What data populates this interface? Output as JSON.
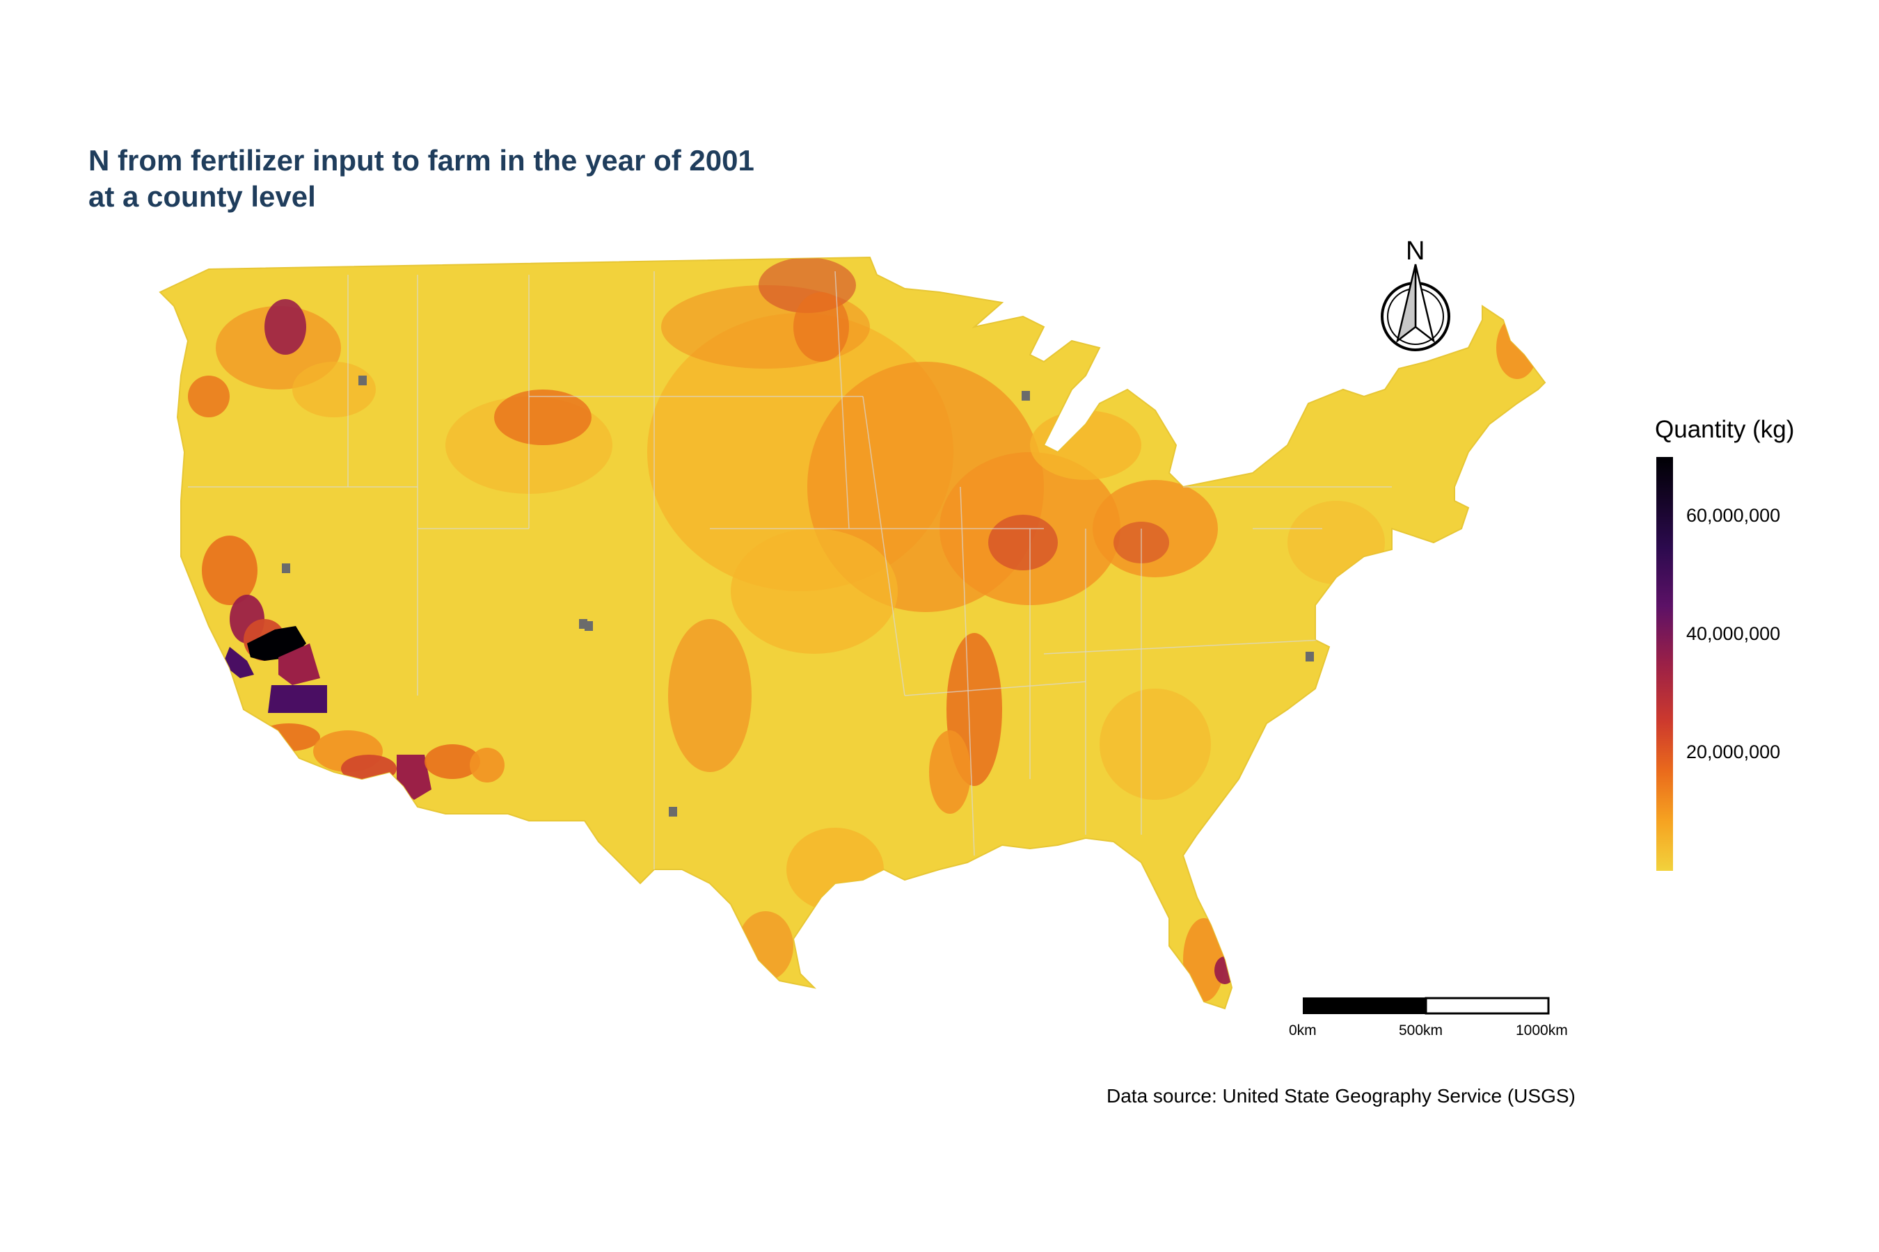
{
  "title": {
    "line1": "N from fertilizer input to farm in the year of 2001",
    "line2": "at a county level"
  },
  "legend": {
    "title": "Quantity (kg)",
    "ticks": [
      {
        "value": 20000000,
        "label": "20,000,000"
      },
      {
        "value": 40000000,
        "label": "40,000,000"
      },
      {
        "value": 60000000,
        "label": "60,000,000"
      }
    ],
    "min": 0,
    "max": 70000000,
    "colors": [
      "#f2d23c",
      "#f6a321",
      "#ea6b1c",
      "#cd3a2d",
      "#9b2047",
      "#5c1166",
      "#2c0a4e",
      "#000004"
    ]
  },
  "north_arrow": {
    "label": "N"
  },
  "scale_bar": {
    "labels": [
      "0km",
      "500km",
      "1000km"
    ]
  },
  "source": "Data source: United State Geography Service (USGS)",
  "map_colors": {
    "base": "#f2d23c",
    "light_orange": "#f5b52b",
    "orange": "#f29222",
    "dark_orange": "#e8701c",
    "red": "#d24a2a",
    "magenta": "#9b2047",
    "purple": "#4a0e63",
    "black": "#000004",
    "no_data": "#6b6b6b",
    "boundary": "#d9d9d9"
  }
}
